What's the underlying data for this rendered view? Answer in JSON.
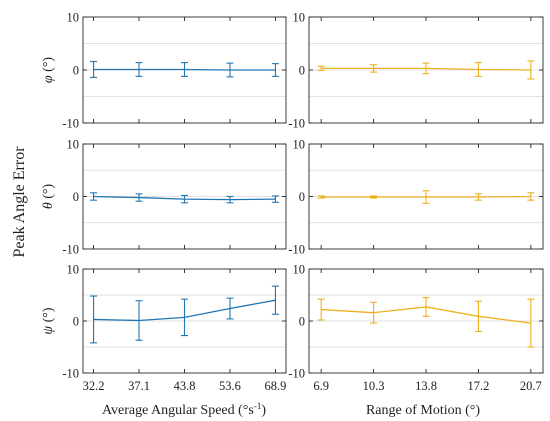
{
  "figure": {
    "ylabel": "Peak Angle Error",
    "left_xlabel": "Average Angular Speed (°s",
    "left_xlabel_sup": "-1",
    "left_xlabel_close": ")",
    "right_xlabel": "Range of Motion (°)"
  },
  "chart_data": [
    {
      "type": "line",
      "row": "phi",
      "column": "left",
      "ylabel": "φ (°)",
      "x_tick_labels": [
        "32.2",
        "37.1",
        "43.8",
        "53.6",
        "68.9"
      ],
      "ylim": [
        -10,
        10
      ],
      "yticks": [
        -10,
        0,
        10
      ],
      "grid": true,
      "color": "#1f77b4",
      "values": [
        0.1,
        0.1,
        0.1,
        0.0,
        0.0
      ],
      "err_low": [
        1.5,
        1.3,
        1.3,
        1.3,
        1.2
      ],
      "err_high": [
        1.5,
        1.3,
        1.3,
        1.3,
        1.2
      ]
    },
    {
      "type": "line",
      "row": "phi",
      "column": "right",
      "ylabel": "",
      "x_tick_labels": [
        "6.9",
        "10.3",
        "13.8",
        "17.2",
        "20.7"
      ],
      "ylim": [
        -10,
        10
      ],
      "yticks": [
        -10,
        0,
        10
      ],
      "grid": true,
      "color": "#edb120",
      "values": [
        0.3,
        0.3,
        0.3,
        0.1,
        0.0
      ],
      "err_low": [
        0.4,
        0.7,
        1.0,
        1.3,
        1.7
      ],
      "err_high": [
        0.4,
        0.7,
        1.0,
        1.3,
        1.7
      ]
    },
    {
      "type": "line",
      "row": "theta",
      "column": "left",
      "ylabel": "θ (°)",
      "x_tick_labels": [
        "32.2",
        "37.1",
        "43.8",
        "53.6",
        "68.9"
      ],
      "ylim": [
        -10,
        10
      ],
      "yticks": [
        -10,
        0,
        10
      ],
      "grid": true,
      "color": "#1f77b4",
      "values": [
        0.0,
        -0.2,
        -0.5,
        -0.6,
        -0.5
      ],
      "err_low": [
        0.7,
        0.7,
        0.7,
        0.6,
        0.6
      ],
      "err_high": [
        0.7,
        0.7,
        0.7,
        0.6,
        0.6
      ]
    },
    {
      "type": "line",
      "row": "theta",
      "column": "right",
      "ylabel": "",
      "x_tick_labels": [
        "6.9",
        "10.3",
        "13.8",
        "17.2",
        "20.7"
      ],
      "ylim": [
        -10,
        10
      ],
      "yticks": [
        -10,
        0,
        10
      ],
      "grid": true,
      "color": "#edb120",
      "values": [
        -0.1,
        -0.1,
        -0.1,
        -0.1,
        0.0
      ],
      "err_low": [
        0.2,
        0.2,
        1.2,
        0.6,
        0.7
      ],
      "err_high": [
        0.2,
        0.2,
        1.2,
        0.6,
        0.7
      ]
    },
    {
      "type": "line",
      "row": "psi",
      "column": "left",
      "ylabel": "ψ (°)",
      "x_tick_labels": [
        "32.2",
        "37.1",
        "43.8",
        "53.6",
        "68.9"
      ],
      "ylim": [
        -10,
        10
      ],
      "yticks": [
        -10,
        0,
        10
      ],
      "grid": true,
      "color": "#1f77b4",
      "values": [
        0.3,
        0.1,
        0.7,
        2.4,
        4.0
      ],
      "err_low": [
        4.5,
        3.8,
        3.5,
        2.0,
        2.7
      ],
      "err_high": [
        4.5,
        3.8,
        3.5,
        2.0,
        2.7
      ]
    },
    {
      "type": "line",
      "row": "psi",
      "column": "right",
      "ylabel": "",
      "x_tick_labels": [
        "6.9",
        "10.3",
        "13.8",
        "17.2",
        "20.7"
      ],
      "ylim": [
        -10,
        10
      ],
      "yticks": [
        -10,
        0,
        10
      ],
      "grid": true,
      "color": "#edb120",
      "values": [
        2.2,
        1.6,
        2.7,
        0.9,
        -0.4
      ],
      "err_low": [
        2.0,
        2.0,
        1.8,
        2.9,
        4.6
      ],
      "err_high": [
        2.0,
        2.0,
        1.8,
        2.9,
        4.6
      ]
    }
  ]
}
